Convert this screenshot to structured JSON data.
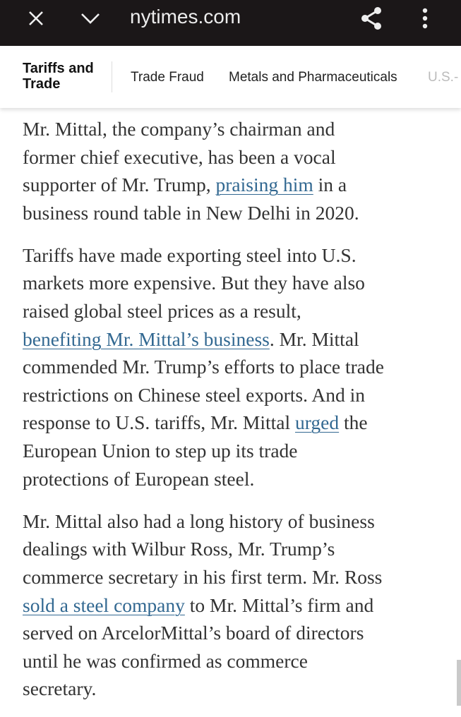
{
  "browser": {
    "url": "nytimes.com"
  },
  "nav": {
    "section_title": "Tariffs and Trade",
    "items": [
      "Trade Fraud",
      "Metals and Pharmaceuticals",
      "U.S.-"
    ]
  },
  "article": {
    "paragraphs": [
      [
        [
          {
            "t": "Mr. Mittal, the company’s chairman and"
          }
        ],
        [
          {
            "t": "former chief executive, has been a vocal"
          }
        ],
        [
          {
            "t": "supporter of Mr. Trump, "
          },
          {
            "t": "praising him",
            "link": true
          },
          {
            "t": " in a"
          }
        ],
        [
          {
            "t": "business round table in New Delhi in 2020."
          }
        ]
      ],
      [
        [
          {
            "t": "Tariffs have made exporting steel into U.S."
          }
        ],
        [
          {
            "t": "markets more expensive. But they have also"
          }
        ],
        [
          {
            "t": "raised global steel prices as a result,"
          }
        ],
        [
          {
            "t": "benefiting Mr. Mittal’s business",
            "link": true
          },
          {
            "t": ". Mr. Mittal"
          }
        ],
        [
          {
            "t": "commended Mr. Trump’s efforts to place trade"
          }
        ],
        [
          {
            "t": "restrictions on Chinese steel exports. And in"
          }
        ],
        [
          {
            "t": "response to U.S. tariffs, Mr. Mittal "
          },
          {
            "t": "urged",
            "link": true
          },
          {
            "t": " the"
          }
        ],
        [
          {
            "t": "European Union to step up its trade"
          }
        ],
        [
          {
            "t": "protections of European steel."
          }
        ]
      ],
      [
        [
          {
            "t": "Mr. Mittal also had a long history of business"
          }
        ],
        [
          {
            "t": "dealings with Wilbur Ross, Mr. Trump’s"
          }
        ],
        [
          {
            "t": "commerce secretary in his first term. Mr. Ross"
          }
        ],
        [
          {
            "t": "sold a steel company",
            "link": true
          },
          {
            "t": " to Mr. Mittal’s firm and"
          }
        ],
        [
          {
            "t": "served on ArcelorMittal’s board of directors"
          }
        ],
        [
          {
            "t": "until he was confirmed as commerce"
          }
        ],
        [
          {
            "t": "secretary."
          }
        ]
      ]
    ]
  }
}
